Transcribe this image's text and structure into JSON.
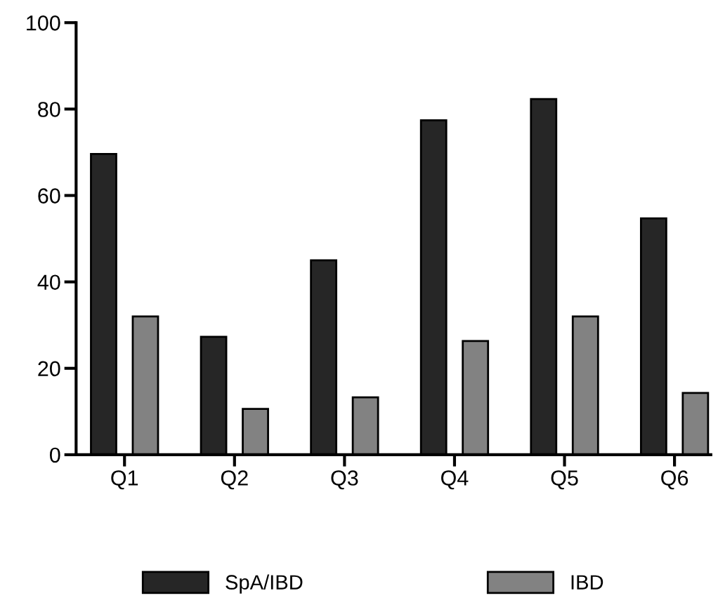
{
  "chart_data": {
    "type": "bar",
    "categories": [
      "Q1",
      "Q2",
      "Q3",
      "Q4",
      "Q5",
      "Q6"
    ],
    "series": [
      {
        "name": "SpA/IBD",
        "color": "#262626",
        "values": [
          69.6,
          27.3,
          45.0,
          77.4,
          82.3,
          54.7
        ]
      },
      {
        "name": "IBD",
        "color": "#828282",
        "values": [
          32.0,
          10.6,
          13.3,
          26.3,
          32.0,
          14.3
        ]
      }
    ],
    "ylim": [
      0,
      100
    ],
    "yticks": [
      0,
      20,
      40,
      60,
      80,
      100
    ],
    "grid": false,
    "legend": "bottom"
  }
}
